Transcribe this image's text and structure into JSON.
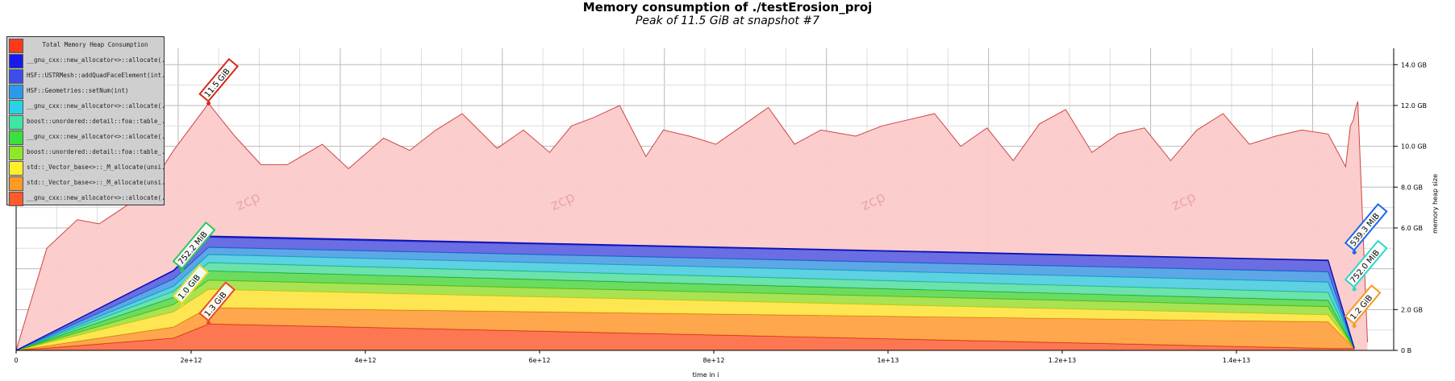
{
  "title": "Memory consumption of ./testErosion_proj",
  "subtitle": "Peak of 11.5 GiB at snapshot #7",
  "watermark": "zcp",
  "chart_data": {
    "type": "area",
    "xlabel": "time in i",
    "ylabel": "memory heap size",
    "x_ticks": [
      {
        "v": 0,
        "label": "0"
      },
      {
        "v": 2000000000000.0,
        "label": "2e+12"
      },
      {
        "v": 4000000000000.0,
        "label": "4e+12"
      },
      {
        "v": 6000000000000.0,
        "label": "6e+12"
      },
      {
        "v": 8000000000000.0,
        "label": "8e+12"
      },
      {
        "v": 10000000000000.0,
        "label": "1e+13"
      },
      {
        "v": 12000000000000.0,
        "label": "1.2e+13"
      },
      {
        "v": 14000000000000.0,
        "label": "1.4e+13"
      }
    ],
    "y_ticks": [
      {
        "v": 0,
        "label": "0 B"
      },
      {
        "v": 2,
        "label": "2.0 GB"
      },
      {
        "v": 6,
        "label": "6.0 GB"
      },
      {
        "v": 8,
        "label": "8.0 GB"
      },
      {
        "v": 10,
        "label": "10.0 GB"
      },
      {
        "v": 12,
        "label": "12.0 GB"
      },
      {
        "v": 14,
        "label": "14.0 GB"
      }
    ],
    "xlim": [
      0,
      15750000000000.0
    ],
    "ylim": [
      0,
      14.8
    ],
    "grid": true,
    "legend": "top-left",
    "total": {
      "name": "Total Memory Heap Consumption",
      "color": "#fbcaca",
      "line": "#cf4444",
      "x": [
        0,
        350000000000.0,
        700000000000.0,
        950000000000.0,
        1300000000000.0,
        1500000000000.0,
        1800000000000.0,
        2200000000000.0,
        2500000000000.0,
        2800000000000.0,
        3100000000000.0,
        3500000000000.0,
        3800000000000.0,
        4200000000000.0,
        4500000000000.0,
        4800000000000.0,
        5100000000000.0,
        5500000000000.0,
        5800000000000.0,
        6100000000000.0,
        6350000000000.0,
        6600000000000.0,
        6900000000000.0,
        7200000000000.0,
        7400000000000.0,
        7700000000000.0,
        8000000000000.0,
        8300000000000.0,
        8600000000000.0,
        8900000000000.0,
        9200000000000.0,
        9600000000000.0,
        9900000000000.0,
        10200000000000.0,
        10500000000000.0,
        10800000000000.0,
        11100000000000.0,
        11400000000000.0,
        11700000000000.0,
        12000000000000.0,
        12300000000000.0,
        12600000000000.0,
        12900000000000.0,
        13200000000000.0,
        13500000000000.0,
        13800000000000.0,
        14100000000000.0,
        14400000000000.0,
        14700000000000.0,
        15000000000000.0,
        15200000000000.0,
        15255000000000.0,
        15290000000000.0,
        15310000000000.0,
        15340000000000.0,
        15450000000000.0
      ],
      "y": [
        0,
        5,
        6.4,
        6.2,
        7.2,
        7.8,
        9.8,
        12.1,
        10.5,
        9.1,
        9.1,
        10.1,
        8.9,
        10.4,
        9.8,
        10.8,
        11.6,
        9.9,
        10.8,
        9.7,
        11.0,
        11.4,
        12.0,
        9.5,
        10.8,
        10.5,
        10.1,
        11.0,
        11.9,
        10.1,
        10.8,
        10.5,
        11.0,
        11.3,
        11.6,
        10.0,
        10.9,
        9.3,
        11.1,
        11.8,
        9.7,
        10.6,
        10.9,
        9.3,
        10.8,
        11.6,
        10.1,
        10.5,
        10.8,
        10.6,
        9.0,
        11.0,
        11.3,
        11.8,
        12.2,
        0.4
      ]
    },
    "x_series": [
      0,
      1800000000000.0,
      2200000000000.0,
      15000000000000.0,
      15300000000000.0
    ],
    "series": [
      {
        "name": "__gnu_cxx::new_allocator<>::allocate(...",
        "color": "#ff5a2a",
        "line": "#c62a1a",
        "values": [
          0,
          0.6,
          1.3,
          0.1,
          0.1
        ]
      },
      {
        "name": "std::_Vector_base<>::_M_allocate(unsi...",
        "color": "#ff9a22",
        "line": "#d27010",
        "values": [
          0,
          0.55,
          0.8,
          1.3,
          0.0
        ]
      },
      {
        "name": "std::_Vector_base<>::_M_allocate(unsi...",
        "color": "#ffee2a",
        "line": "#cfc010",
        "values": [
          0,
          0.75,
          0.9,
          0.35,
          0.0
        ]
      },
      {
        "name": "boost::unordered::detail::foa::table_...",
        "color": "#8ee82a",
        "line": "#5cb010",
        "values": [
          0,
          0.35,
          0.45,
          0.4,
          0.0
        ]
      },
      {
        "name": "__gnu_cxx::new_allocator<>::allocate(...",
        "color": "#3ce03c",
        "line": "#1da01d",
        "values": [
          0,
          0.35,
          0.45,
          0.3,
          0.0
        ]
      },
      {
        "name": "boost::unordered::detail::foa::table_...",
        "color": "#3ce8a0",
        "line": "#18b070",
        "values": [
          0,
          0.3,
          0.4,
          0.4,
          0.0
        ]
      },
      {
        "name": "__gnu_cxx::new_allocator<>::allocate(...",
        "color": "#2ad2e8",
        "line": "#10a0b8",
        "values": [
          0,
          0.25,
          0.4,
          0.5,
          0.0
        ]
      },
      {
        "name": "HSF::Geometries::setNum(int)",
        "color": "#2a9aee",
        "line": "#1070c0",
        "values": [
          0,
          0.35,
          0.35,
          0.5,
          0.0
        ]
      },
      {
        "name": "HSF::USTRMesh::addQuadFaceElement(int...",
        "color": "#3a4ee8",
        "line": "#1a2ec0",
        "values": [
          0,
          0.4,
          0.5,
          0.55,
          0.0
        ]
      },
      {
        "name": "__gnu_cxx::new_allocator<>::allocate(...",
        "color": "#1a1aee",
        "line": "#0a0ab0",
        "values": [
          0,
          0.02,
          0.05,
          0.02,
          0.0
        ]
      }
    ],
    "annotations": [
      {
        "text": "11.5 GiB",
        "x": 2200000000000.0,
        "y": 12.1,
        "color": "#d62a1a"
      },
      {
        "text": "752.2 MiB",
        "x": 1900000000000.0,
        "y": 3.9,
        "color": "#2ac85a"
      },
      {
        "text": "1.0 GiB",
        "x": 1900000000000.0,
        "y": 2.2,
        "color": "#e8d82a"
      },
      {
        "text": "1.3 GiB",
        "x": 2200000000000.0,
        "y": 1.35,
        "color": "#e84a2a"
      },
      {
        "text": "539.3 MiB",
        "x": 15300000000000.0,
        "y": 4.8,
        "color": "#1a6ae8"
      },
      {
        "text": "752.0 MiB",
        "x": 15300000000000.0,
        "y": 3.0,
        "color": "#2ad8c8"
      },
      {
        "text": "1.2 GiB",
        "x": 15300000000000.0,
        "y": 1.2,
        "color": "#f0a020"
      }
    ]
  }
}
